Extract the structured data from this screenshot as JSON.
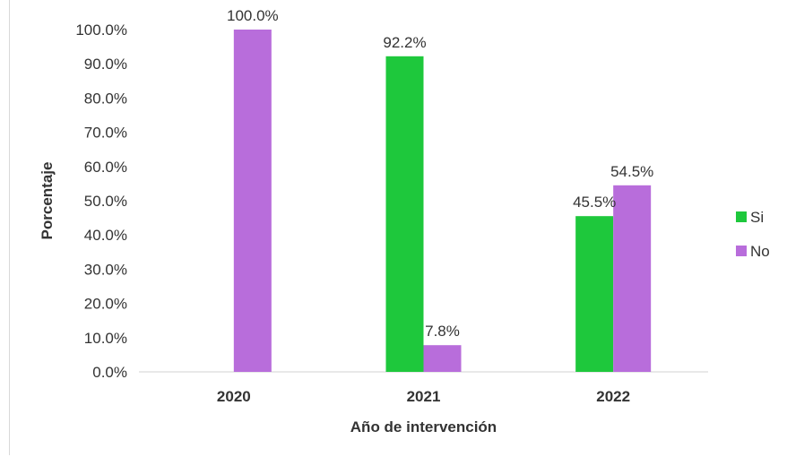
{
  "chart_data": {
    "type": "bar",
    "title": "",
    "xlabel": "Año de intervención",
    "ylabel": "Porcentaje",
    "categories": [
      "2020",
      "2021",
      "2022"
    ],
    "ylim": [
      0,
      100
    ],
    "ytick_step": 10,
    "ytick_labels": [
      "0.0%",
      "10.0%",
      "20.0%",
      "30.0%",
      "40.0%",
      "50.0%",
      "60.0%",
      "70.0%",
      "80.0%",
      "90.0%",
      "100.0%"
    ],
    "series": [
      {
        "name": "Si",
        "color": "#1ec83c",
        "values": [
          null,
          92.2,
          45.5
        ],
        "labels": [
          null,
          "92.2%",
          "45.5%"
        ]
      },
      {
        "name": "No",
        "color": "#b86ddb",
        "values": [
          100.0,
          7.8,
          54.5
        ],
        "labels": [
          "100.0%",
          "7.8%",
          "54.5%"
        ]
      }
    ],
    "legend": "right",
    "grid": false
  }
}
